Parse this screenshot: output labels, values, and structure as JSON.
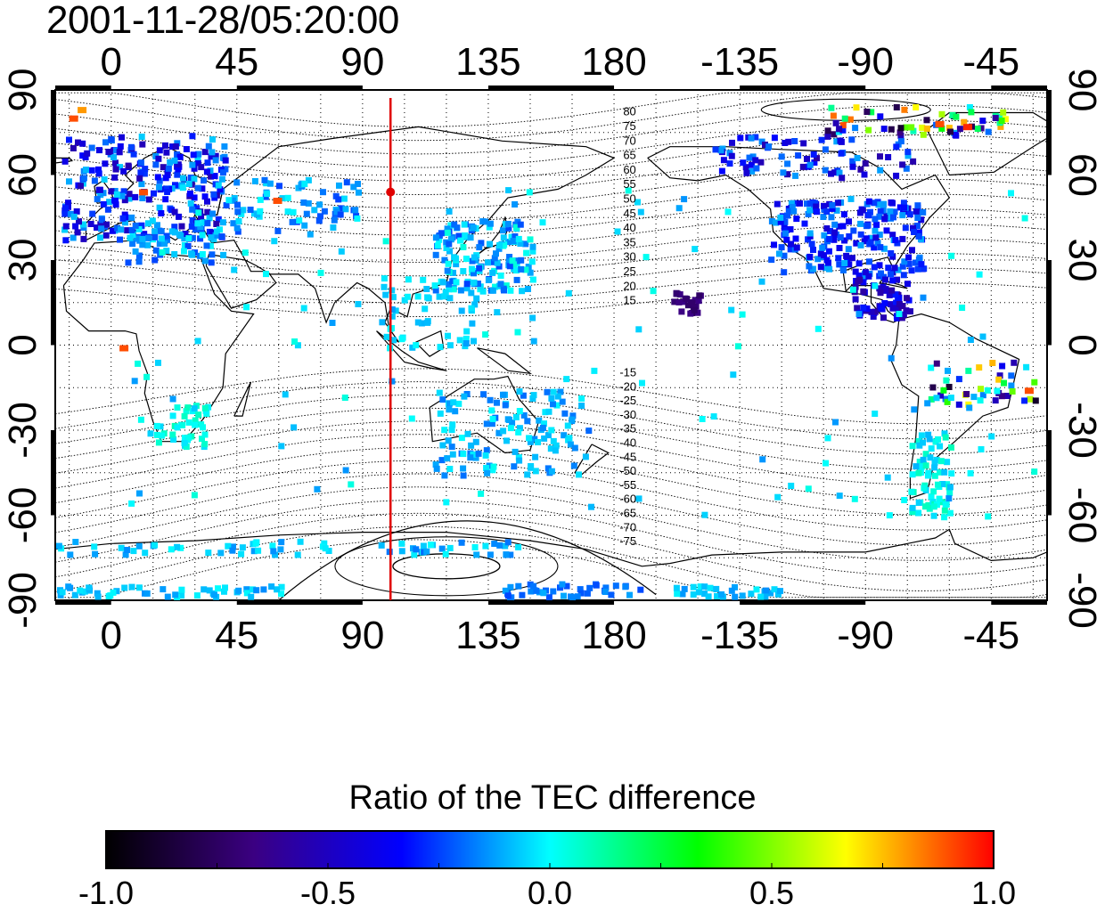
{
  "title": "2001-11-28/05:20:00",
  "map": {
    "x_ticks": [
      "0",
      "45",
      "90",
      "135",
      "180",
      "-135",
      "-90",
      "-45"
    ],
    "y_ticks_left": [
      "90",
      "60",
      "30",
      "0",
      "-30",
      "-60",
      "-90"
    ],
    "y_ticks_right": [
      "90",
      "60",
      "30",
      "0",
      "-30",
      "-60",
      "-90"
    ],
    "longitude_range": [
      -20,
      335
    ],
    "latitude_range": [
      -90,
      90
    ],
    "marker_longitude": 100,
    "marker_color": "#e00000",
    "contour_labels_north": [
      "80",
      "75",
      "70",
      "65",
      "60",
      "55",
      "50",
      "45",
      "40",
      "35",
      "30",
      "25",
      "20",
      "15"
    ],
    "contour_labels_south": [
      "-15",
      "-20",
      "-25",
      "-30",
      "-35",
      "-40",
      "-45",
      "-50",
      "-55",
      "-60",
      "-65",
      "-70",
      "-75"
    ],
    "grid": true
  },
  "colorbar": {
    "title": "Ratio of the TEC difference",
    "ticks": [
      "-1.0",
      "-0.5",
      "0.0",
      "0.5",
      "1.0"
    ],
    "min": -1.0,
    "max": 1.0,
    "stops": [
      "#000000",
      "#3b0082",
      "#0000ff",
      "#00ffff",
      "#00ff00",
      "#ffff00",
      "#ff0000"
    ]
  }
}
